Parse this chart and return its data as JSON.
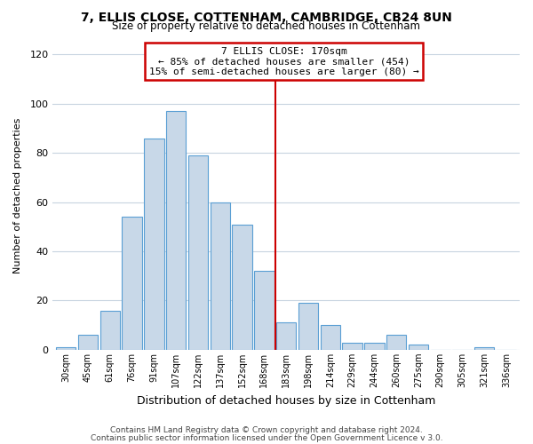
{
  "title": "7, ELLIS CLOSE, COTTENHAM, CAMBRIDGE, CB24 8UN",
  "subtitle": "Size of property relative to detached houses in Cottenham",
  "xlabel": "Distribution of detached houses by size in Cottenham",
  "ylabel": "Number of detached properties",
  "bar_labels": [
    "30sqm",
    "45sqm",
    "61sqm",
    "76sqm",
    "91sqm",
    "107sqm",
    "122sqm",
    "137sqm",
    "152sqm",
    "168sqm",
    "183sqm",
    "198sqm",
    "214sqm",
    "229sqm",
    "244sqm",
    "260sqm",
    "275sqm",
    "290sqm",
    "305sqm",
    "321sqm",
    "336sqm"
  ],
  "bar_heights": [
    1,
    6,
    16,
    54,
    86,
    97,
    79,
    60,
    51,
    32,
    11,
    19,
    10,
    3,
    3,
    6,
    2,
    0,
    0,
    1,
    0
  ],
  "bar_color": "#c8d8e8",
  "bar_edge_color": "#5a9fd4",
  "vline_x_idx": 9.5,
  "vline_color": "#cc0000",
  "annotation_title": "7 ELLIS CLOSE: 170sqm",
  "annotation_line1": "← 85% of detached houses are smaller (454)",
  "annotation_line2": "15% of semi-detached houses are larger (80) →",
  "annotation_box_color": "#cc0000",
  "ylim": [
    0,
    125
  ],
  "yticks": [
    0,
    20,
    40,
    60,
    80,
    100,
    120
  ],
  "footer_line1": "Contains HM Land Registry data © Crown copyright and database right 2024.",
  "footer_line2": "Contains public sector information licensed under the Open Government Licence v 3.0.",
  "bg_color": "#ffffff",
  "grid_color": "#c8d4e0"
}
